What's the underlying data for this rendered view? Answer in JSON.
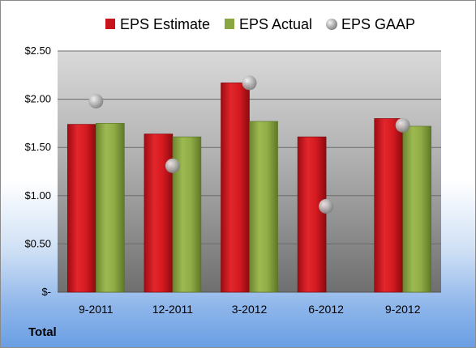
{
  "chart_data": {
    "type": "bar",
    "categories": [
      "9-2011",
      "12-2011",
      "3-2012",
      "6-2012",
      "9-2012"
    ],
    "series": [
      {
        "name": "EPS Estimate",
        "kind": "bar",
        "values": [
          1.74,
          1.64,
          2.17,
          1.61,
          1.8
        ]
      },
      {
        "name": "EPS Actual",
        "kind": "bar",
        "values": [
          1.75,
          1.61,
          1.77,
          null,
          1.72
        ]
      },
      {
        "name": "EPS GAAP",
        "kind": "marker",
        "values": [
          1.98,
          1.31,
          2.17,
          0.89,
          1.73
        ]
      }
    ],
    "y_ticks": [
      {
        "value": 0,
        "label": "$-"
      },
      {
        "value": 0.5,
        "label": "$0.50"
      },
      {
        "value": 1.0,
        "label": "$1.00"
      },
      {
        "value": 1.5,
        "label": "$1.50"
      },
      {
        "value": 2.0,
        "label": "$2.00"
      },
      {
        "value": 2.5,
        "label": "$2.50"
      }
    ],
    "ylim": [
      0,
      2.5
    ],
    "grid": true,
    "legend_position": "top",
    "colors": {
      "estimate": "#c8141c",
      "actual": "#8aa640",
      "gaap": "#b8b8b8",
      "plot_bg_top": "#d4d4d4",
      "plot_bg_bottom": "#7a7a7a"
    }
  },
  "footer": {
    "total_label": "Total"
  }
}
